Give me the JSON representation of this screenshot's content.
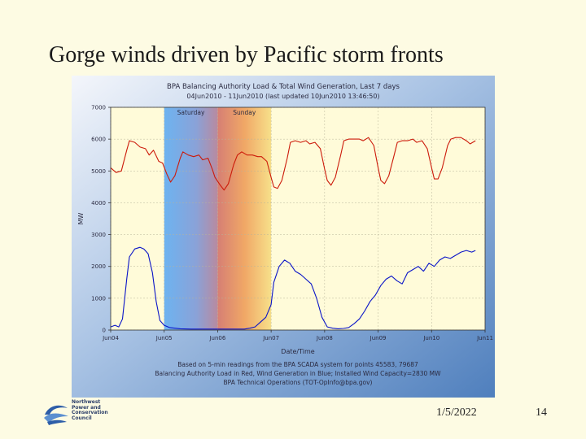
{
  "slide": {
    "title": "Gorge winds driven by Pacific storm fronts",
    "date": "1/5/2022",
    "page_number": "14"
  },
  "logo": {
    "icon": "council-swirl-logo",
    "lines": [
      "Northwest",
      "Power and",
      "Conservation",
      "Council"
    ]
  },
  "colors": {
    "slide_background": "#fdfbe3",
    "chart_background": "#7fa6d3",
    "plot_background": "#fffbd9",
    "load_series": "#cc1a0a",
    "wind_series": "#0a14c8",
    "saturday_band": "#6cb0ee",
    "sunday_band": "#f2b566"
  },
  "chart_data": {
    "type": "line",
    "title": "BPA Balancing Authority Load & Total Wind Generation, Last 7 days",
    "subtitle": "04Jun2010 - 11Jun2010 (last updated 10Jun2010 13:46:50)",
    "xlabel": "Date/Time",
    "ylabel": "MW",
    "ylim": [
      0,
      7000
    ],
    "yticks": [
      "0",
      "1000",
      "2000",
      "3000",
      "4000",
      "5000",
      "6000",
      "7000"
    ],
    "x_ticks": [
      "Jun04",
      "Jun05",
      "Jun06",
      "Jun07",
      "Jun08",
      "Jun09",
      "Jun10",
      "Jun11"
    ],
    "xlim_days": [
      0,
      7
    ],
    "bands": [
      {
        "label": "Saturday",
        "start_day": 1.0,
        "end_day": 2.0
      },
      {
        "label": "Sunday",
        "start_day": 2.0,
        "end_day": 3.0
      }
    ],
    "footnotes": [
      "Based on 5-min readings from the BPA SCADA system for points 45583, 79687",
      "Balancing Authority Load in Red, Wind Generation in Blue; Installed Wind Capacity=2830 MW",
      "BPA Technical Operations (TOT-OpInfo@bpa.gov)"
    ],
    "series": [
      {
        "name": "Balancing Authority Load",
        "color": "#cc1a0a",
        "x": [
          0.0,
          0.1,
          0.2,
          0.3,
          0.35,
          0.45,
          0.55,
          0.65,
          0.72,
          0.8,
          0.9,
          0.97,
          1.05,
          1.12,
          1.2,
          1.3,
          1.35,
          1.45,
          1.55,
          1.65,
          1.72,
          1.82,
          1.9,
          1.95,
          2.05,
          2.12,
          2.2,
          2.3,
          2.37,
          2.45,
          2.55,
          2.65,
          2.75,
          2.82,
          2.92,
          3.0,
          3.05,
          3.12,
          3.2,
          3.3,
          3.36,
          3.45,
          3.55,
          3.65,
          3.72,
          3.82,
          3.92,
          4.0,
          4.05,
          4.12,
          4.2,
          4.3,
          4.36,
          4.45,
          4.55,
          4.65,
          4.72,
          4.82,
          4.92,
          5.0,
          5.05,
          5.12,
          5.2,
          5.3,
          5.36,
          5.45,
          5.55,
          5.65,
          5.72,
          5.82,
          5.92,
          6.0,
          6.05,
          6.12,
          6.2,
          6.3,
          6.36,
          6.45,
          6.55,
          6.65,
          6.72,
          6.82
        ],
        "y": [
          5100,
          4950,
          5000,
          5650,
          5950,
          5900,
          5750,
          5700,
          5500,
          5650,
          5300,
          5250,
          4900,
          4650,
          4850,
          5400,
          5600,
          5500,
          5450,
          5500,
          5350,
          5400,
          5050,
          4800,
          4550,
          4400,
          4600,
          5200,
          5500,
          5600,
          5500,
          5500,
          5450,
          5450,
          5300,
          4800,
          4500,
          4450,
          4700,
          5400,
          5900,
          5950,
          5900,
          5950,
          5850,
          5900,
          5700,
          5050,
          4700,
          4550,
          4800,
          5500,
          5950,
          6000,
          6000,
          6000,
          5950,
          6050,
          5800,
          5100,
          4700,
          4600,
          4850,
          5500,
          5900,
          5950,
          5950,
          6000,
          5900,
          5950,
          5700,
          5100,
          4750,
          4750,
          5100,
          5800,
          6000,
          6050,
          6050,
          5950,
          5850,
          5950
        ]
      },
      {
        "name": "Wind Generation",
        "color": "#0a14c8",
        "x": [
          0.0,
          0.08,
          0.15,
          0.22,
          0.3,
          0.35,
          0.45,
          0.55,
          0.62,
          0.7,
          0.78,
          0.85,
          0.92,
          1.0,
          1.1,
          1.3,
          1.5,
          1.7,
          1.9,
          2.1,
          2.3,
          2.5,
          2.6,
          2.7,
          2.8,
          2.9,
          3.0,
          3.05,
          3.15,
          3.25,
          3.35,
          3.45,
          3.55,
          3.65,
          3.75,
          3.85,
          3.95,
          4.05,
          4.15,
          4.25,
          4.35,
          4.45,
          4.55,
          4.65,
          4.75,
          4.85,
          4.95,
          5.05,
          5.15,
          5.25,
          5.35,
          5.45,
          5.55,
          5.65,
          5.75,
          5.85,
          5.95,
          6.05,
          6.15,
          6.25,
          6.35,
          6.45,
          6.55,
          6.65,
          6.75,
          6.82
        ],
        "y": [
          100,
          150,
          100,
          350,
          1600,
          2300,
          2550,
          2600,
          2550,
          2400,
          1800,
          900,
          300,
          150,
          80,
          40,
          30,
          30,
          30,
          30,
          30,
          30,
          60,
          100,
          250,
          400,
          800,
          1500,
          2000,
          2200,
          2100,
          1850,
          1750,
          1600,
          1450,
          1000,
          400,
          100,
          60,
          40,
          50,
          80,
          200,
          350,
          600,
          900,
          1100,
          1400,
          1600,
          1700,
          1550,
          1450,
          1800,
          1900,
          2000,
          1850,
          2100,
          2000,
          2200,
          2300,
          2250,
          2350,
          2450,
          2500,
          2450,
          2500
        ]
      }
    ]
  }
}
